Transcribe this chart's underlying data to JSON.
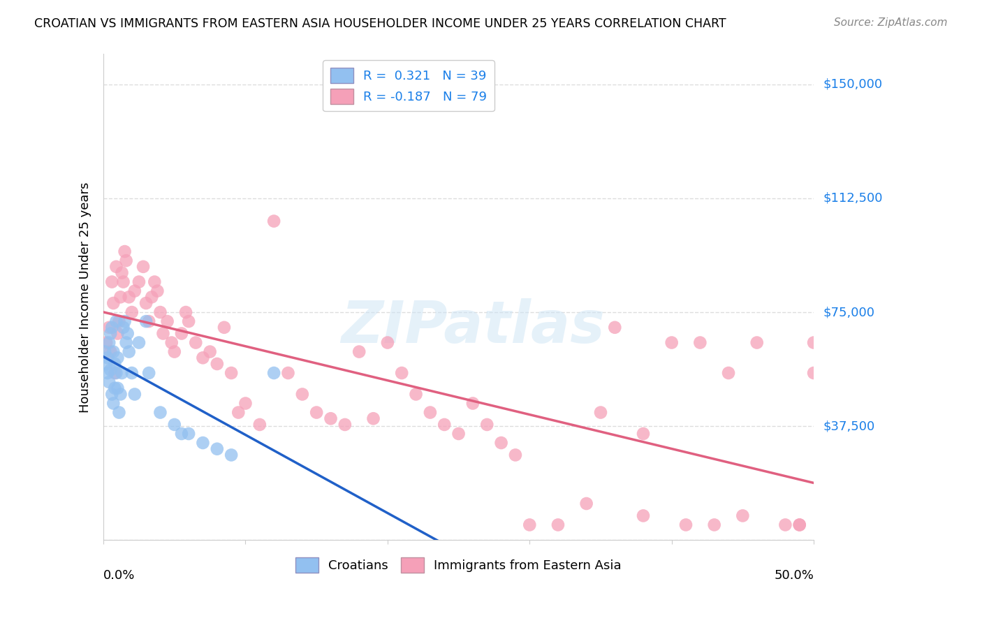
{
  "title": "CROATIAN VS IMMIGRANTS FROM EASTERN ASIA HOUSEHOLDER INCOME UNDER 25 YEARS CORRELATION CHART",
  "source": "Source: ZipAtlas.com",
  "ylabel": "Householder Income Under 25 years",
  "yticks": [
    0,
    37500,
    75000,
    112500,
    150000
  ],
  "ytick_labels": [
    "",
    "$37,500",
    "$75,000",
    "$112,500",
    "$150,000"
  ],
  "xlim": [
    0.0,
    0.5
  ],
  "ylim": [
    0,
    160000
  ],
  "croatian_R": 0.321,
  "croatian_N": 39,
  "immigrant_R": -0.187,
  "immigrant_N": 79,
  "croatian_color": "#92c0f0",
  "immigrant_color": "#f5a0b8",
  "croatian_line_color": "#2060c8",
  "immigrant_line_color": "#e06080",
  "dashed_line_color": "#b0c8e0",
  "background_color": "#ffffff",
  "grid_color": "#dddddd",
  "watermark": "ZIPatlas",
  "croatian_x": [
    0.001,
    0.002,
    0.003,
    0.003,
    0.004,
    0.004,
    0.005,
    0.005,
    0.006,
    0.006,
    0.007,
    0.007,
    0.008,
    0.008,
    0.009,
    0.009,
    0.01,
    0.01,
    0.011,
    0.012,
    0.013,
    0.014,
    0.015,
    0.016,
    0.017,
    0.018,
    0.02,
    0.022,
    0.025,
    0.03,
    0.032,
    0.04,
    0.05,
    0.055,
    0.06,
    0.07,
    0.08,
    0.09,
    0.12
  ],
  "croatian_y": [
    62000,
    58000,
    55000,
    60000,
    65000,
    52000,
    68000,
    56000,
    70000,
    48000,
    62000,
    45000,
    58000,
    50000,
    72000,
    55000,
    50000,
    60000,
    42000,
    48000,
    55000,
    70000,
    72000,
    65000,
    68000,
    62000,
    55000,
    48000,
    65000,
    72000,
    55000,
    42000,
    38000,
    35000,
    35000,
    32000,
    30000,
    28000,
    55000
  ],
  "immigrant_x": [
    0.002,
    0.004,
    0.005,
    0.006,
    0.007,
    0.008,
    0.009,
    0.01,
    0.011,
    0.012,
    0.013,
    0.014,
    0.015,
    0.016,
    0.018,
    0.02,
    0.022,
    0.025,
    0.028,
    0.03,
    0.032,
    0.034,
    0.036,
    0.038,
    0.04,
    0.042,
    0.045,
    0.048,
    0.05,
    0.055,
    0.058,
    0.06,
    0.065,
    0.07,
    0.075,
    0.08,
    0.085,
    0.09,
    0.095,
    0.1,
    0.11,
    0.12,
    0.13,
    0.14,
    0.15,
    0.16,
    0.17,
    0.18,
    0.19,
    0.2,
    0.21,
    0.22,
    0.23,
    0.24,
    0.25,
    0.26,
    0.27,
    0.28,
    0.29,
    0.3,
    0.32,
    0.34,
    0.36,
    0.38,
    0.4,
    0.42,
    0.44,
    0.46,
    0.48,
    0.49,
    0.5,
    0.5,
    0.505,
    0.43,
    0.41,
    0.45,
    0.38,
    0.35,
    0.49
  ],
  "immigrant_y": [
    65000,
    70000,
    62000,
    85000,
    78000,
    55000,
    90000,
    68000,
    72000,
    80000,
    88000,
    85000,
    95000,
    92000,
    80000,
    75000,
    82000,
    85000,
    90000,
    78000,
    72000,
    80000,
    85000,
    82000,
    75000,
    68000,
    72000,
    65000,
    62000,
    68000,
    75000,
    72000,
    65000,
    60000,
    62000,
    58000,
    70000,
    55000,
    42000,
    45000,
    38000,
    105000,
    55000,
    48000,
    42000,
    40000,
    38000,
    62000,
    40000,
    65000,
    55000,
    48000,
    42000,
    38000,
    35000,
    45000,
    38000,
    32000,
    28000,
    5000,
    5000,
    12000,
    70000,
    8000,
    65000,
    65000,
    55000,
    65000,
    5000,
    5000,
    65000,
    55000,
    8000,
    5000,
    5000,
    8000,
    35000,
    42000,
    5000
  ]
}
